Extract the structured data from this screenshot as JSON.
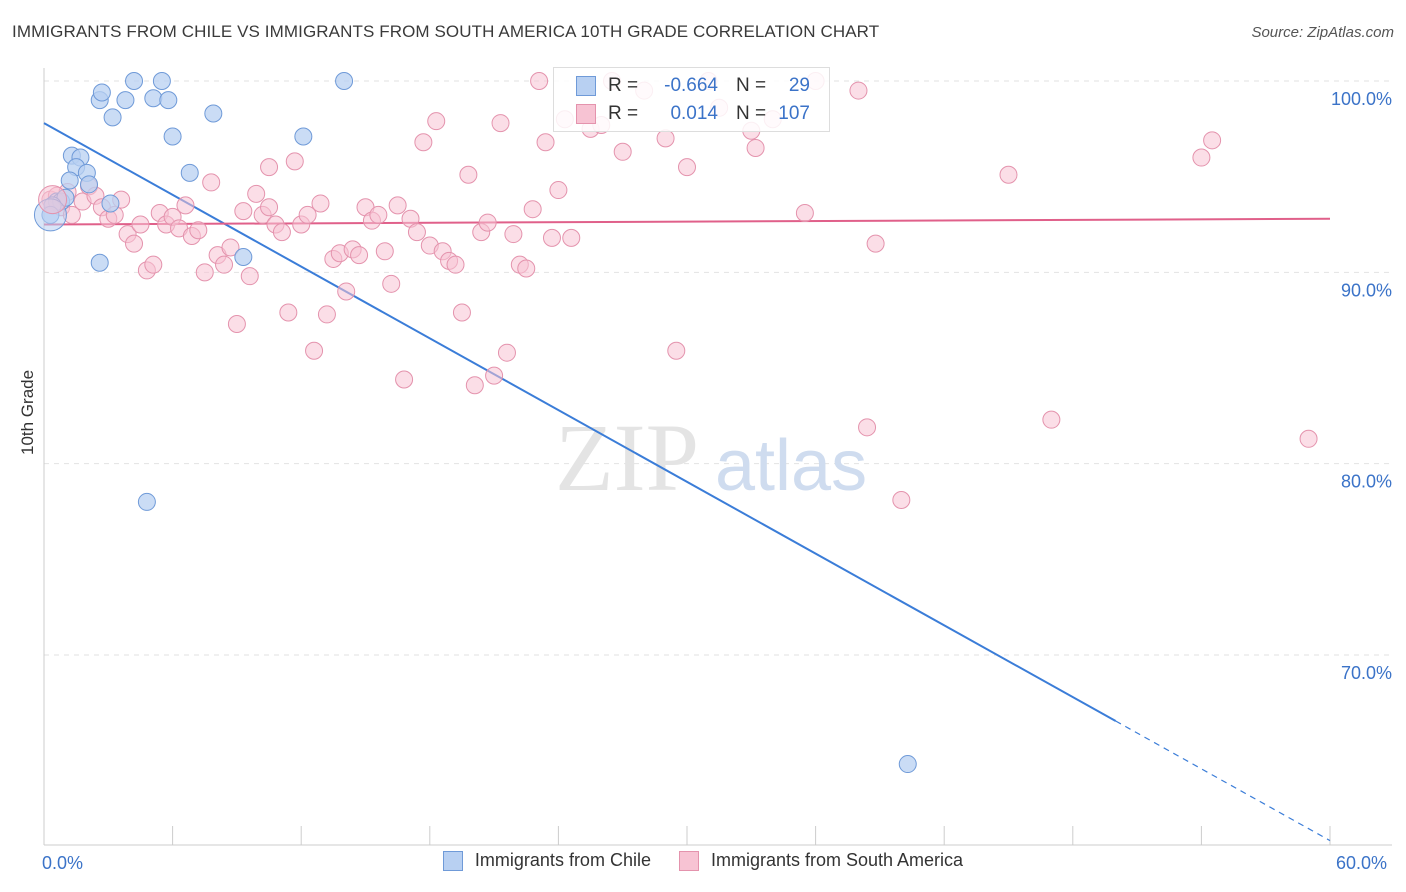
{
  "title": "IMMIGRANTS FROM CHILE VS IMMIGRANTS FROM SOUTH AMERICA 10TH GRADE CORRELATION CHART",
  "source": "Source: ZipAtlas.com",
  "watermark": {
    "zip": "ZIP",
    "atlas": "atlas"
  },
  "legend": {
    "chile": {
      "r_label": "R =",
      "r_value": "-0.664",
      "n_label": "N =",
      "n_value": "29"
    },
    "south_america": {
      "r_label": "R =",
      "r_value": "0.014",
      "n_label": "N =",
      "n_value": "107"
    }
  },
  "x_axis": {
    "min_label": "0.0%",
    "max_label": "60.0%"
  },
  "colors": {
    "chile": "#3b7dd8",
    "chile_fill": "#b8d0f2",
    "south_america": "#e0608a",
    "south_america_fill": "#f7c3d3",
    "tick_label": "#3b73c8"
  },
  "chart_data": {
    "type": "scatter",
    "xlabel": "",
    "ylabel": "10th Grade",
    "xlim": [
      0,
      60
    ],
    "ylim": [
      60,
      102
    ],
    "y_ticks": [
      {
        "value": 100,
        "label": "100.0%"
      },
      {
        "value": 90,
        "label": "90.0%"
      },
      {
        "value": 80,
        "label": "80.0%"
      },
      {
        "value": 70,
        "label": "70.0%"
      }
    ],
    "grid": true,
    "series": [
      {
        "name": "Immigrants from Chile",
        "color": "#3b7dd8",
        "trend": {
          "x0": 0,
          "y0": 97.8,
          "x1": 60,
          "y1": 60.3,
          "solid_until_x": 50
        },
        "points": [
          [
            2.6,
            99.0
          ],
          [
            2.7,
            99.4
          ],
          [
            3.8,
            99.0
          ],
          [
            4.2,
            100.0
          ],
          [
            5.1,
            99.1
          ],
          [
            5.5,
            100.0
          ],
          [
            5.8,
            99.0
          ],
          [
            3.2,
            98.1
          ],
          [
            7.9,
            98.3
          ],
          [
            6.0,
            97.1
          ],
          [
            12.1,
            97.1
          ],
          [
            14.0,
            100.0
          ],
          [
            1.3,
            96.1
          ],
          [
            1.7,
            96.0
          ],
          [
            1.5,
            95.5
          ],
          [
            2.0,
            95.2
          ],
          [
            1.2,
            94.8
          ],
          [
            2.1,
            94.6
          ],
          [
            3.1,
            93.6
          ],
          [
            6.8,
            95.2
          ],
          [
            0.6,
            93.7
          ],
          [
            0.8,
            93.7
          ],
          [
            1.0,
            93.9
          ],
          [
            0.4,
            93.5
          ],
          [
            0.3,
            93.0
          ],
          [
            2.6,
            90.5
          ],
          [
            9.3,
            90.8
          ],
          [
            4.8,
            78.0
          ],
          [
            40.3,
            64.3
          ]
        ]
      },
      {
        "name": "Immigrants from South America",
        "color": "#e0608a",
        "trend": {
          "x0": 0,
          "y0": 92.5,
          "x1": 60,
          "y1": 92.8
        },
        "points": [
          [
            0.3,
            93.8
          ],
          [
            0.6,
            94.0
          ],
          [
            0.8,
            93.4
          ],
          [
            1.1,
            94.2
          ],
          [
            1.3,
            93.0
          ],
          [
            1.8,
            93.7
          ],
          [
            2.1,
            94.5
          ],
          [
            2.4,
            94.0
          ],
          [
            2.7,
            93.4
          ],
          [
            3.0,
            92.8
          ],
          [
            3.3,
            93.0
          ],
          [
            3.6,
            93.8
          ],
          [
            3.9,
            92.0
          ],
          [
            4.2,
            91.5
          ],
          [
            4.5,
            92.5
          ],
          [
            4.8,
            90.1
          ],
          [
            5.1,
            90.4
          ],
          [
            5.4,
            93.1
          ],
          [
            5.7,
            92.5
          ],
          [
            6.0,
            92.9
          ],
          [
            6.3,
            92.3
          ],
          [
            6.6,
            93.5
          ],
          [
            6.9,
            91.9
          ],
          [
            7.2,
            92.2
          ],
          [
            7.5,
            90.0
          ],
          [
            7.8,
            94.7
          ],
          [
            8.1,
            90.9
          ],
          [
            8.4,
            90.4
          ],
          [
            8.7,
            91.3
          ],
          [
            9.0,
            87.3
          ],
          [
            9.3,
            93.2
          ],
          [
            9.6,
            89.8
          ],
          [
            9.9,
            94.1
          ],
          [
            10.2,
            93.0
          ],
          [
            10.5,
            93.4
          ],
          [
            10.8,
            92.5
          ],
          [
            11.1,
            92.1
          ],
          [
            11.4,
            87.9
          ],
          [
            11.7,
            95.8
          ],
          [
            12.0,
            92.5
          ],
          [
            12.3,
            93.0
          ],
          [
            12.6,
            85.9
          ],
          [
            12.9,
            93.6
          ],
          [
            13.2,
            87.8
          ],
          [
            13.5,
            90.7
          ],
          [
            13.8,
            91.0
          ],
          [
            14.1,
            89.0
          ],
          [
            14.4,
            91.2
          ],
          [
            14.7,
            90.9
          ],
          [
            15.0,
            93.4
          ],
          [
            15.3,
            92.7
          ],
          [
            15.6,
            93.0
          ],
          [
            15.9,
            91.1
          ],
          [
            16.2,
            89.4
          ],
          [
            16.5,
            93.5
          ],
          [
            16.8,
            84.4
          ],
          [
            17.1,
            92.8
          ],
          [
            17.4,
            92.1
          ],
          [
            17.7,
            96.8
          ],
          [
            18.0,
            91.4
          ],
          [
            18.3,
            97.9
          ],
          [
            18.6,
            91.1
          ],
          [
            18.9,
            90.6
          ],
          [
            19.2,
            90.4
          ],
          [
            19.5,
            87.9
          ],
          [
            19.8,
            95.1
          ],
          [
            20.1,
            84.1
          ],
          [
            20.4,
            92.1
          ],
          [
            20.7,
            92.6
          ],
          [
            21.0,
            84.6
          ],
          [
            21.3,
            97.8
          ],
          [
            21.6,
            85.8
          ],
          [
            21.9,
            92.0
          ],
          [
            22.2,
            90.4
          ],
          [
            22.5,
            90.2
          ],
          [
            22.8,
            93.3
          ],
          [
            23.1,
            100.0
          ],
          [
            23.4,
            96.8
          ],
          [
            23.7,
            91.8
          ],
          [
            24.0,
            94.3
          ],
          [
            24.3,
            98.0
          ],
          [
            24.6,
            91.8
          ],
          [
            25.5,
            97.5
          ],
          [
            26.0,
            97.7
          ],
          [
            26.5,
            100.0
          ],
          [
            27.0,
            96.3
          ],
          [
            28.0,
            99.5
          ],
          [
            29.5,
            85.9
          ],
          [
            31.0,
            100.0
          ],
          [
            31.5,
            98.6
          ],
          [
            33.0,
            97.4
          ],
          [
            33.2,
            96.5
          ],
          [
            34.0,
            98.0
          ],
          [
            36.0,
            100.0
          ],
          [
            38.0,
            99.5
          ],
          [
            38.4,
            81.9
          ],
          [
            38.8,
            91.5
          ],
          [
            40.0,
            78.1
          ],
          [
            45.0,
            95.1
          ],
          [
            47.0,
            82.3
          ],
          [
            54.0,
            96.0
          ],
          [
            54.5,
            96.9
          ],
          [
            59.0,
            81.3
          ],
          [
            29.0,
            97.0
          ],
          [
            30.0,
            95.5
          ],
          [
            35.5,
            93.1
          ],
          [
            10.5,
            95.5
          ]
        ]
      }
    ]
  },
  "bottom_legend": {
    "chile": "Immigrants from Chile",
    "south_america": "Immigrants from South America"
  }
}
